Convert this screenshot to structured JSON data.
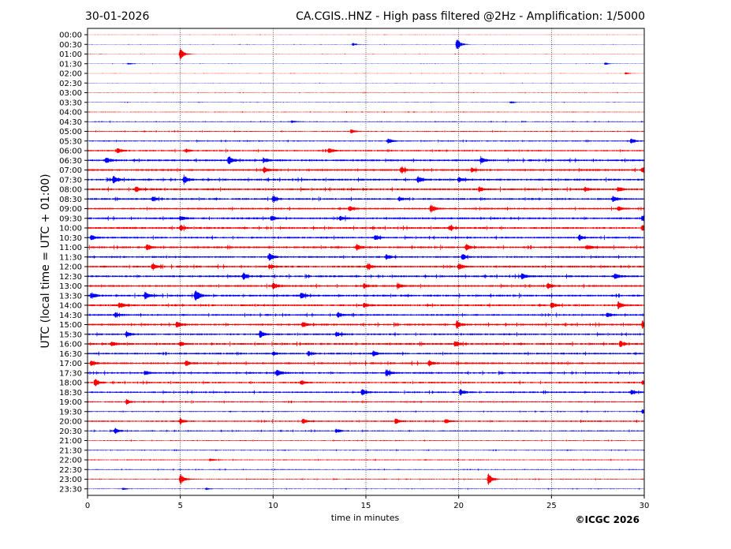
{
  "header": {
    "date": "30-01-2026",
    "title": "CA.CGIS..HNZ - High pass filtered @2Hz - Amplification: 1/5000"
  },
  "footer": {
    "copyright": "©ICGC 2026"
  },
  "chart_data": {
    "type": "line",
    "title": "CA.CGIS..HNZ - High pass filtered @2Hz - Amplification: 1/5000",
    "xlabel": "time in minutes",
    "ylabel": "UTC (local time = UTC + 01:00)",
    "xlim": [
      0,
      30
    ],
    "x_ticks": [
      "0",
      "5",
      "10",
      "15",
      "20",
      "25",
      "30"
    ],
    "grid": "vertical dotted lines every 5 minutes",
    "trace_colors": [
      "#ff0000",
      "#0000ff"
    ],
    "rows": [
      {
        "label": "00:00",
        "noise": 0.2,
        "events": []
      },
      {
        "label": "00:30",
        "noise": 0.2,
        "events": [
          {
            "t": 14.3,
            "amp": 2
          },
          {
            "t": 19.9,
            "amp": 9
          }
        ]
      },
      {
        "label": "01:00",
        "noise": 0.2,
        "events": [
          {
            "t": 5.0,
            "amp": 8
          }
        ]
      },
      {
        "label": "01:30",
        "noise": 0.2,
        "events": [
          {
            "t": 2.2,
            "amp": 1.5
          },
          {
            "t": 27.9,
            "amp": 1.5
          }
        ]
      },
      {
        "label": "02:00",
        "noise": 0.2,
        "events": [
          {
            "t": 29.0,
            "amp": 1.5
          }
        ]
      },
      {
        "label": "02:30",
        "noise": 0.2,
        "events": []
      },
      {
        "label": "03:00",
        "noise": 0.3,
        "events": []
      },
      {
        "label": "03:30",
        "noise": 0.3,
        "events": [
          {
            "t": 22.8,
            "amp": 1.5
          }
        ]
      },
      {
        "label": "04:00",
        "noise": 0.4,
        "events": []
      },
      {
        "label": "04:30",
        "noise": 0.5,
        "events": [
          {
            "t": 11.0,
            "amp": 1.5
          }
        ]
      },
      {
        "label": "05:00",
        "noise": 0.6,
        "events": [
          {
            "t": 14.2,
            "amp": 3
          }
        ]
      },
      {
        "label": "05:30",
        "noise": 0.7,
        "events": [
          {
            "t": 16.2,
            "amp": 4
          },
          {
            "t": 29.3,
            "amp": 4
          }
        ]
      },
      {
        "label": "06:00",
        "noise": 0.9,
        "events": [
          {
            "t": 1.6,
            "amp": 4
          },
          {
            "t": 13.0,
            "amp": 4
          },
          {
            "t": 5.3,
            "amp": 2.5
          }
        ]
      },
      {
        "label": "06:30",
        "noise": 1.2,
        "events": [
          {
            "t": 7.6,
            "amp": 7
          },
          {
            "t": 1.0,
            "amp": 4
          },
          {
            "t": 21.2,
            "amp": 4
          },
          {
            "t": 9.5,
            "amp": 3
          }
        ]
      },
      {
        "label": "07:00",
        "noise": 1.2,
        "events": [
          {
            "t": 9.5,
            "amp": 4
          },
          {
            "t": 16.9,
            "amp": 4
          },
          {
            "t": 29.9,
            "amp": 4
          },
          {
            "t": 20.7,
            "amp": 3
          }
        ]
      },
      {
        "label": "07:30",
        "noise": 1.2,
        "events": [
          {
            "t": 1.4,
            "amp": 6
          },
          {
            "t": 5.2,
            "amp": 5
          },
          {
            "t": 17.8,
            "amp": 4
          },
          {
            "t": 20.0,
            "amp": 3
          }
        ]
      },
      {
        "label": "08:00",
        "noise": 1.2,
        "events": [
          {
            "t": 2.6,
            "amp": 4
          },
          {
            "t": 21.1,
            "amp": 4
          },
          {
            "t": 28.6,
            "amp": 3
          },
          {
            "t": 26.8,
            "amp": 3
          }
        ]
      },
      {
        "label": "08:30",
        "noise": 1.1,
        "events": [
          {
            "t": 10.0,
            "amp": 4
          },
          {
            "t": 28.3,
            "amp": 4
          },
          {
            "t": 3.5,
            "amp": 3
          },
          {
            "t": 16.8,
            "amp": 3
          }
        ]
      },
      {
        "label": "09:00",
        "noise": 1.1,
        "events": [
          {
            "t": 18.5,
            "amp": 6
          },
          {
            "t": 28.6,
            "amp": 4
          },
          {
            "t": 14.1,
            "amp": 3
          }
        ]
      },
      {
        "label": "09:30",
        "noise": 1.2,
        "events": [
          {
            "t": 9.9,
            "amp": 4
          },
          {
            "t": 29.9,
            "amp": 4
          },
          {
            "t": 5.0,
            "amp": 3
          },
          {
            "t": 13.6,
            "amp": 3
          }
        ]
      },
      {
        "label": "10:00",
        "noise": 1.2,
        "events": [
          {
            "t": 5.0,
            "amp": 4
          },
          {
            "t": 29.9,
            "amp": 4
          },
          {
            "t": 19.5,
            "amp": 3
          }
        ]
      },
      {
        "label": "10:30",
        "noise": 1.1,
        "events": [
          {
            "t": 15.5,
            "amp": 4
          },
          {
            "t": 26.5,
            "amp": 4
          },
          {
            "t": 0.2,
            "amp": 3
          }
        ]
      },
      {
        "label": "11:00",
        "noise": 1.2,
        "events": [
          {
            "t": 3.2,
            "amp": 4
          },
          {
            "t": 14.5,
            "amp": 4
          },
          {
            "t": 20.4,
            "amp": 4
          },
          {
            "t": 26.9,
            "amp": 3
          }
        ]
      },
      {
        "label": "11:30",
        "noise": 1.1,
        "events": [
          {
            "t": 9.8,
            "amp": 5
          },
          {
            "t": 20.2,
            "amp": 4
          },
          {
            "t": 16.1,
            "amp": 3
          }
        ]
      },
      {
        "label": "12:00",
        "noise": 1.2,
        "events": [
          {
            "t": 3.5,
            "amp": 5
          },
          {
            "t": 15.1,
            "amp": 4
          },
          {
            "t": 20.0,
            "amp": 4
          },
          {
            "t": 9.8,
            "amp": 3
          }
        ]
      },
      {
        "label": "12:30",
        "noise": 1.2,
        "events": [
          {
            "t": 8.4,
            "amp": 4
          },
          {
            "t": 23.4,
            "amp": 4
          },
          {
            "t": 28.4,
            "amp": 4
          }
        ]
      },
      {
        "label": "13:00",
        "noise": 1.2,
        "events": [
          {
            "t": 10.0,
            "amp": 4
          },
          {
            "t": 16.7,
            "amp": 4
          },
          {
            "t": 24.8,
            "amp": 4
          },
          {
            "t": 14.9,
            "amp": 3
          }
        ]
      },
      {
        "label": "13:30",
        "noise": 1.2,
        "events": [
          {
            "t": 5.8,
            "amp": 9
          },
          {
            "t": 3.1,
            "amp": 5
          },
          {
            "t": 0.2,
            "amp": 4
          },
          {
            "t": 11.5,
            "amp": 4
          }
        ]
      },
      {
        "label": "14:00",
        "noise": 1.2,
        "events": [
          {
            "t": 28.6,
            "amp": 5
          },
          {
            "t": 1.7,
            "amp": 4
          },
          {
            "t": 25.0,
            "amp": 4
          },
          {
            "t": 14.9,
            "amp": 3
          }
        ]
      },
      {
        "label": "14:30",
        "noise": 1.1,
        "events": [
          {
            "t": 13.5,
            "amp": 4
          },
          {
            "t": 1.5,
            "amp": 3
          },
          {
            "t": 28.0,
            "amp": 3
          }
        ]
      },
      {
        "label": "15:00",
        "noise": 1.2,
        "events": [
          {
            "t": 19.9,
            "amp": 5
          },
          {
            "t": 29.9,
            "amp": 5
          },
          {
            "t": 4.8,
            "amp": 4
          },
          {
            "t": 11.6,
            "amp": 4
          }
        ]
      },
      {
        "label": "15:30",
        "noise": 1.1,
        "events": [
          {
            "t": 9.3,
            "amp": 5
          },
          {
            "t": 2.1,
            "amp": 4
          },
          {
            "t": 13.4,
            "amp": 3
          }
        ]
      },
      {
        "label": "16:00",
        "noise": 1.2,
        "events": [
          {
            "t": 19.8,
            "amp": 4
          },
          {
            "t": 28.7,
            "amp": 4
          },
          {
            "t": 1.3,
            "amp": 3
          },
          {
            "t": 5.0,
            "amp": 3
          }
        ]
      },
      {
        "label": "16:30",
        "noise": 1.1,
        "events": [
          {
            "t": 15.4,
            "amp": 4
          },
          {
            "t": 10.0,
            "amp": 3
          },
          {
            "t": 11.9,
            "amp": 3
          }
        ]
      },
      {
        "label": "17:00",
        "noise": 1.2,
        "events": [
          {
            "t": 18.4,
            "amp": 4
          },
          {
            "t": 5.3,
            "amp": 4
          },
          {
            "t": 0.2,
            "amp": 3
          }
        ]
      },
      {
        "label": "17:30",
        "noise": 1.1,
        "events": [
          {
            "t": 10.2,
            "amp": 5
          },
          {
            "t": 16.1,
            "amp": 5
          },
          {
            "t": 3.1,
            "amp": 3
          }
        ]
      },
      {
        "label": "18:00",
        "noise": 1.0,
        "events": [
          {
            "t": 0.4,
            "amp": 5
          },
          {
            "t": 11.5,
            "amp": 3
          },
          {
            "t": 29.9,
            "amp": 3
          }
        ]
      },
      {
        "label": "18:30",
        "noise": 1.0,
        "events": [
          {
            "t": 14.8,
            "amp": 5
          },
          {
            "t": 20.1,
            "amp": 4
          },
          {
            "t": 29.3,
            "amp": 3
          }
        ]
      },
      {
        "label": "19:00",
        "noise": 0.8,
        "events": [
          {
            "t": 2.1,
            "amp": 3
          }
        ]
      },
      {
        "label": "19:30",
        "noise": 0.6,
        "events": [
          {
            "t": 29.9,
            "amp": 3
          }
        ]
      },
      {
        "label": "20:00",
        "noise": 0.9,
        "events": [
          {
            "t": 5.0,
            "amp": 4
          },
          {
            "t": 11.6,
            "amp": 4
          },
          {
            "t": 16.6,
            "amp": 4
          },
          {
            "t": 19.3,
            "amp": 3
          }
        ]
      },
      {
        "label": "20:30",
        "noise": 0.7,
        "events": [
          {
            "t": 1.5,
            "amp": 4
          },
          {
            "t": 13.4,
            "amp": 3
          }
        ]
      },
      {
        "label": "21:00",
        "noise": 0.5,
        "events": []
      },
      {
        "label": "21:30",
        "noise": 0.5,
        "events": []
      },
      {
        "label": "22:00",
        "noise": 0.6,
        "events": [
          {
            "t": 6.6,
            "amp": 2
          }
        ]
      },
      {
        "label": "22:30",
        "noise": 0.5,
        "events": []
      },
      {
        "label": "23:00",
        "noise": 0.5,
        "events": [
          {
            "t": 5.0,
            "amp": 8
          },
          {
            "t": 21.6,
            "amp": 8
          }
        ]
      },
      {
        "label": "23:30",
        "noise": 0.4,
        "events": [
          {
            "t": 1.9,
            "amp": 1.5
          },
          {
            "t": 6.4,
            "amp": 1.5
          }
        ]
      }
    ]
  }
}
